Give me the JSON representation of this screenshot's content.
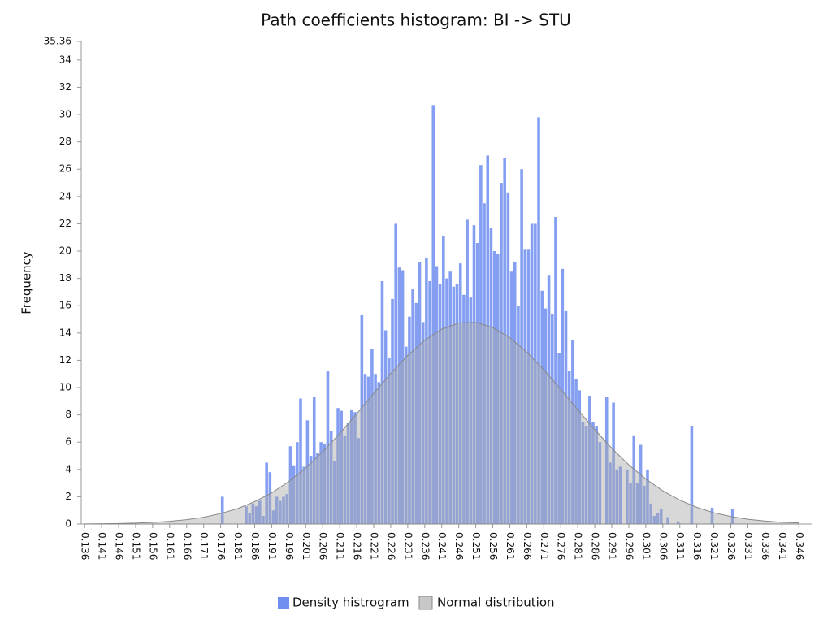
{
  "chart_data": {
    "type": "histogram",
    "title": "Path coefficients histogram: BI -> STU",
    "y_label": "Frequency",
    "grid": false,
    "xlim": [
      0.135,
      0.35
    ],
    "ylim": [
      0,
      35.36
    ],
    "yticks": [
      0,
      2,
      4,
      6,
      8,
      10,
      12,
      14,
      16,
      18,
      20,
      22,
      24,
      26,
      28,
      30,
      32,
      34,
      35.36
    ],
    "xticks": [
      0.136,
      0.141,
      0.146,
      0.151,
      0.156,
      0.161,
      0.166,
      0.171,
      0.176,
      0.181,
      0.186,
      0.191,
      0.196,
      0.201,
      0.206,
      0.211,
      0.216,
      0.221,
      0.226,
      0.231,
      0.236,
      0.241,
      0.246,
      0.251,
      0.256,
      0.261,
      0.266,
      0.271,
      0.276,
      0.281,
      0.286,
      0.291,
      0.296,
      0.301,
      0.306,
      0.311,
      0.316,
      0.321,
      0.326,
      0.331,
      0.336,
      0.341,
      0.346
    ],
    "bins": [
      0.136,
      0.137,
      0.138,
      0.139,
      0.14,
      0.141,
      0.142,
      0.143,
      0.144,
      0.145,
      0.146,
      0.147,
      0.148,
      0.149,
      0.15,
      0.151,
      0.152,
      0.153,
      0.154,
      0.155,
      0.156,
      0.157,
      0.158,
      0.159,
      0.16,
      0.161,
      0.162,
      0.163,
      0.164,
      0.165,
      0.166,
      0.167,
      0.168,
      0.169,
      0.17,
      0.171,
      0.172,
      0.173,
      0.174,
      0.175,
      0.176,
      0.177,
      0.178,
      0.179,
      0.18,
      0.181,
      0.182,
      0.183,
      0.184,
      0.185,
      0.186,
      0.187,
      0.188,
      0.189,
      0.19,
      0.191,
      0.192,
      0.193,
      0.194,
      0.195,
      0.196,
      0.197,
      0.198,
      0.199,
      0.2,
      0.201,
      0.202,
      0.203,
      0.204,
      0.205,
      0.206,
      0.207,
      0.208,
      0.209,
      0.21,
      0.211,
      0.212,
      0.213,
      0.214,
      0.215,
      0.216,
      0.217,
      0.218,
      0.219,
      0.22,
      0.221,
      0.222,
      0.223,
      0.224,
      0.225,
      0.226,
      0.227,
      0.228,
      0.229,
      0.23,
      0.231,
      0.232,
      0.233,
      0.234,
      0.235,
      0.236,
      0.237,
      0.238,
      0.239,
      0.24,
      0.241,
      0.242,
      0.243,
      0.244,
      0.245,
      0.246,
      0.247,
      0.248,
      0.249,
      0.25,
      0.251,
      0.252,
      0.253,
      0.254,
      0.255,
      0.256,
      0.257,
      0.258,
      0.259,
      0.26,
      0.261,
      0.262,
      0.263,
      0.264,
      0.265,
      0.266,
      0.267,
      0.268,
      0.269,
      0.27,
      0.271,
      0.272,
      0.273,
      0.274,
      0.275,
      0.276,
      0.277,
      0.278,
      0.279,
      0.28,
      0.281,
      0.282,
      0.283,
      0.284,
      0.285,
      0.286,
      0.287,
      0.288,
      0.289,
      0.29,
      0.291,
      0.292,
      0.293,
      0.294,
      0.295,
      0.296,
      0.297,
      0.298,
      0.299,
      0.3,
      0.301,
      0.302,
      0.303,
      0.304,
      0.305,
      0.306,
      0.307,
      0.308,
      0.309,
      0.31,
      0.311,
      0.312,
      0.313,
      0.314,
      0.315,
      0.316,
      0.317,
      0.318,
      0.319,
      0.32,
      0.321,
      0.322,
      0.323,
      0.324,
      0.325,
      0.326,
      0.327,
      0.328,
      0.329,
      0.33,
      0.331,
      0.332,
      0.333,
      0.334,
      0.335,
      0.336,
      0.337,
      0.338,
      0.339,
      0.34,
      0.341,
      0.342,
      0.343,
      0.344,
      0.345,
      0.346
    ],
    "series": [
      {
        "name": "Density histrogram",
        "color": "#6f8ef0",
        "values": [
          0,
          0,
          0,
          0,
          0,
          0,
          0,
          0,
          0,
          0,
          0,
          0,
          0,
          0,
          0,
          0,
          0,
          0,
          0,
          0,
          0,
          0,
          0,
          0,
          0,
          0,
          0,
          0,
          0,
          0,
          0,
          0,
          0,
          0,
          0,
          0,
          0,
          0,
          0,
          0,
          2,
          0,
          0,
          0,
          0,
          0,
          0,
          1.3,
          0.8,
          1.5,
          1.3,
          1.7,
          0.6,
          4.5,
          3.8,
          1.0,
          2.0,
          1.7,
          2.0,
          2.2,
          5.7,
          4.3,
          6.0,
          9.2,
          4.2,
          7.6,
          5.0,
          9.3,
          5.2,
          6.0,
          5.9,
          11.2,
          6.8,
          4.6,
          8.5,
          8.3,
          6.5,
          7.4,
          8.4,
          8.2,
          6.3,
          15.3,
          11.0,
          10.8,
          12.8,
          11.0,
          10.4,
          17.8,
          14.2,
          12.2,
          16.5,
          22.0,
          18.8,
          18.6,
          13.0,
          15.2,
          17.2,
          16.2,
          19.2,
          14.8,
          19.5,
          17.8,
          30.7,
          18.9,
          17.6,
          21.1,
          18.0,
          18.5,
          17.4,
          17.6,
          19.1,
          16.8,
          22.3,
          16.6,
          21.9,
          20.6,
          26.3,
          23.5,
          27.0,
          21.7,
          20.0,
          19.8,
          25.0,
          26.8,
          24.3,
          18.5,
          19.2,
          16.0,
          26.0,
          20.1,
          20.1,
          22.0,
          22.0,
          29.8,
          17.1,
          15.8,
          18.2,
          15.4,
          22.5,
          12.5,
          18.7,
          15.6,
          11.2,
          13.5,
          10.6,
          9.8,
          7.5,
          7.2,
          9.4,
          7.5,
          7.2,
          6.0,
          0,
          9.3,
          4.5,
          8.9,
          4.0,
          4.2,
          0,
          4.0,
          3.0,
          6.5,
          3.0,
          5.8,
          2.8,
          4.0,
          1.5,
          0.6,
          0.8,
          1.1,
          0,
          0.5,
          0,
          0,
          0.2,
          0,
          0,
          0,
          7.2,
          0,
          0,
          0,
          0,
          0,
          1.2,
          0,
          0,
          0,
          0,
          0,
          1.1,
          0,
          0,
          0,
          0,
          0,
          0,
          0,
          0,
          0,
          0,
          0,
          0,
          0,
          0,
          0,
          0,
          0,
          0,
          0
        ]
      },
      {
        "name": "Normal distribution",
        "type": "area",
        "color": "#a8a8a8",
        "x": [
          0.136,
          0.141,
          0.146,
          0.151,
          0.156,
          0.161,
          0.166,
          0.171,
          0.176,
          0.181,
          0.186,
          0.191,
          0.196,
          0.201,
          0.206,
          0.211,
          0.216,
          0.221,
          0.226,
          0.231,
          0.236,
          0.241,
          0.246,
          0.251,
          0.256,
          0.261,
          0.266,
          0.271,
          0.276,
          0.281,
          0.286,
          0.291,
          0.296,
          0.301,
          0.306,
          0.311,
          0.316,
          0.321,
          0.326,
          0.331,
          0.336,
          0.341,
          0.346
        ],
        "values": [
          0.01,
          0.02,
          0.04,
          0.07,
          0.12,
          0.2,
          0.32,
          0.5,
          0.77,
          1.13,
          1.64,
          2.28,
          3.11,
          4.11,
          5.3,
          6.63,
          8.08,
          9.57,
          11.03,
          12.36,
          13.47,
          14.28,
          14.73,
          14.77,
          14.4,
          13.66,
          12.6,
          11.31,
          9.87,
          8.38,
          6.92,
          5.55,
          4.34,
          3.3,
          2.43,
          1.75,
          1.22,
          0.83,
          0.55,
          0.35,
          0.22,
          0.13,
          0.08
        ]
      }
    ]
  }
}
